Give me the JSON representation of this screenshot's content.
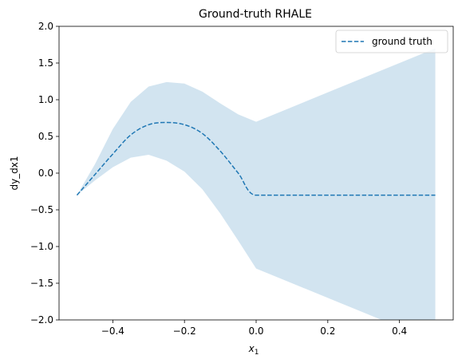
{
  "chart_data": {
    "type": "line",
    "title": "Ground-truth RHALE",
    "xlabel": "x",
    "xlabel_subscript": "1",
    "ylabel": "dy_dx1",
    "xlim": [
      -0.55,
      0.55
    ],
    "ylim": [
      -2.0,
      2.0
    ],
    "xticks": [
      -0.4,
      -0.2,
      0.0,
      0.2,
      0.4
    ],
    "xtick_labels": [
      "−0.4",
      "−0.2",
      "0.0",
      "0.2",
      "0.4"
    ],
    "yticks": [
      -2.0,
      -1.5,
      -1.0,
      -0.5,
      0.0,
      0.5,
      1.0,
      1.5,
      2.0
    ],
    "ytick_labels": [
      "−2.0",
      "−1.5",
      "−1.0",
      "−0.5",
      "0.0",
      "0.5",
      "1.0",
      "1.5",
      "2.0"
    ],
    "grid": false,
    "legend_position": "top-right",
    "series": [
      {
        "name": "ground truth",
        "style": "dashed",
        "color": "#1f77b4",
        "x": [
          -0.5,
          -0.45,
          -0.4,
          -0.35,
          -0.3,
          -0.25,
          -0.2,
          -0.15,
          -0.1,
          -0.05,
          0.0,
          0.1,
          0.2,
          0.3,
          0.4,
          0.5
        ],
        "y": [
          -0.3,
          -0.02,
          0.26,
          0.52,
          0.66,
          0.69,
          0.66,
          0.54,
          0.3,
          0.0,
          -0.3,
          -0.3,
          -0.3,
          -0.3,
          -0.3,
          -0.3
        ]
      }
    ],
    "band": {
      "color": "#1f77b4",
      "opacity": 0.2,
      "x": [
        -0.5,
        -0.45,
        -0.4,
        -0.35,
        -0.3,
        -0.25,
        -0.2,
        -0.15,
        -0.1,
        -0.05,
        0.0,
        0.1,
        0.2,
        0.3,
        0.4,
        0.5
      ],
      "upper": [
        -0.3,
        0.12,
        0.6,
        0.97,
        1.18,
        1.24,
        1.22,
        1.11,
        0.95,
        0.8,
        0.7,
        0.9,
        1.1,
        1.3,
        1.5,
        1.7
      ],
      "lower": [
        -0.3,
        -0.1,
        0.08,
        0.21,
        0.25,
        0.17,
        0.02,
        -0.22,
        -0.55,
        -0.92,
        -1.3,
        -1.5,
        -1.7,
        -1.9,
        -2.1,
        -2.3
      ]
    }
  }
}
